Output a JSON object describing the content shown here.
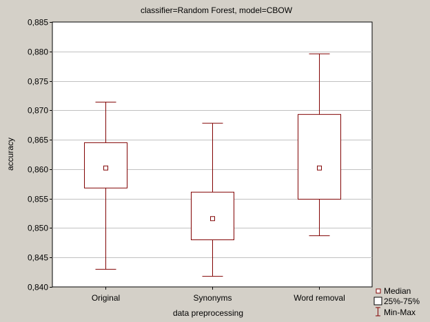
{
  "chart_data": {
    "type": "boxplot",
    "title": "classifier=Random Forest, model=CBOW",
    "xlabel": "data preprocessing",
    "ylabel": "accuracy",
    "ylim": [
      0.84,
      0.885
    ],
    "yticks": [
      0.84,
      0.845,
      0.85,
      0.855,
      0.86,
      0.865,
      0.87,
      0.875,
      0.88,
      0.885
    ],
    "ytick_labels": [
      "0,840",
      "0,845",
      "0,850",
      "0,855",
      "0,860",
      "0,865",
      "0,870",
      "0,875",
      "0,880",
      "0,885"
    ],
    "grid": true,
    "categories": [
      "Original",
      "Synonyms",
      "Word removal"
    ],
    "boxes": [
      {
        "category": "Original",
        "min": 0.843,
        "q1": 0.8568,
        "median": 0.8602,
        "q3": 0.8645,
        "max": 0.8714
      },
      {
        "category": "Synonyms",
        "min": 0.8418,
        "q1": 0.848,
        "median": 0.8516,
        "q3": 0.8561,
        "max": 0.8678
      },
      {
        "category": "Word removal",
        "min": 0.8487,
        "q1": 0.8549,
        "median": 0.8602,
        "q3": 0.8693,
        "max": 0.8796
      }
    ],
    "legend": {
      "position": "bottom-right",
      "entries": [
        "Median",
        "25%-75%",
        "Min-Max"
      ]
    },
    "colors": {
      "box": "#800000",
      "plot_background": "#ffffff",
      "page_background": "#d4d0c8",
      "grid": "#c0c0c0"
    }
  }
}
